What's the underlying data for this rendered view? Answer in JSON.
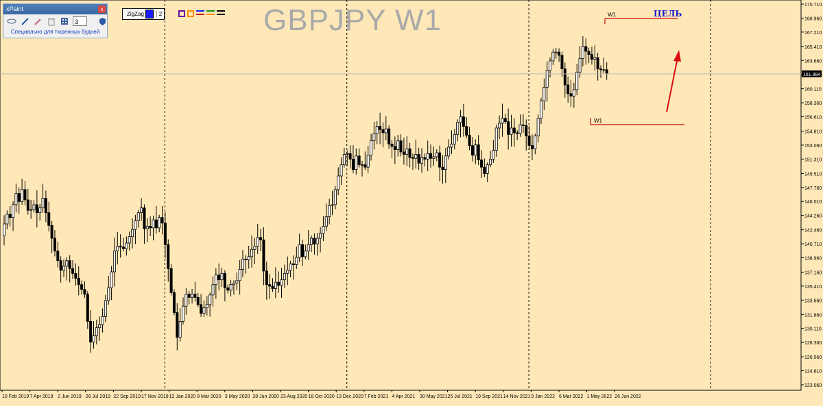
{
  "window": {
    "symbol_title": "GBPJPY W1",
    "colors": {
      "background": "#ffe8b8",
      "bull": "#ffffff",
      "bear": "#000000",
      "grid": "#000000",
      "level": "#cc1111",
      "target_text": "#1a1acc"
    }
  },
  "xpaint": {
    "title": "xPaint",
    "close_label": "x",
    "tools": [
      {
        "name": "eraser-icon"
      },
      {
        "name": "brush-icon"
      },
      {
        "name": "marker-icon"
      },
      {
        "name": "trash-icon"
      },
      {
        "name": "palette-icon"
      }
    ],
    "line_width": "3",
    "note": "Специально для тюренных будней",
    "shield_icon": "shield-icon"
  },
  "zigzag": {
    "label": "ZigZag",
    "color": "#1a1aff",
    "value": "2"
  },
  "drawing_colors": [
    {
      "kind": "square",
      "color": "#6a0aa0"
    },
    {
      "kind": "square",
      "color": "#ff8800"
    },
    {
      "kind": "lines",
      "colors": [
        "#1a1aff",
        "#cc0000"
      ]
    },
    {
      "kind": "lines",
      "colors": [
        "#1a8a1a",
        "#ff8800"
      ]
    },
    {
      "kind": "lines",
      "colors": [
        "#000000",
        "#000000"
      ]
    }
  ],
  "annotations": {
    "target_label": "ЦЕЛЬ",
    "upper_level": {
      "label": "W1",
      "price": 168.9
    },
    "lower_level": {
      "label": "W1",
      "price": 155.62
    },
    "arrow": "red arrow pointing up"
  },
  "chart_data": {
    "type": "candlestick",
    "title": "GBPJPY W1",
    "symbol": "GBPJPY",
    "timeframe": "W1",
    "ylim": [
      123.06,
      170.71
    ],
    "current_price": 161.984,
    "y_ticks": [
      "170.710",
      "168.960",
      "167.210",
      "165.410",
      "163.660",
      "161.910",
      "160.110",
      "158.360",
      "156.610",
      "154.810",
      "153.060",
      "151.310",
      "149.510",
      "147.760",
      "146.010",
      "144.260",
      "142.460",
      "140.710",
      "138.960",
      "137.160",
      "135.410",
      "133.660",
      "131.860",
      "130.110",
      "128.360",
      "126.560",
      "124.810",
      "123.060"
    ],
    "x_ticks": [
      "10 Feb 2019",
      "7 Apr 2019",
      "2 Jun 2019",
      "28 Jul 2019",
      "22 Sep 2019",
      "17 Nov 2019",
      "12 Jan 2020",
      "8 Mar 2020",
      "3 May 2020",
      "28 Jun 2020",
      "23 Aug 2020",
      "18 Oct 2020",
      "13 Dec 2020",
      "7 Feb 2021",
      "4 Apr 2021",
      "30 May 2021",
      "25 Jul 2021",
      "19 Sep 2021",
      "14 Nov 2021",
      "9 Jan 2022",
      "6 Mar 2022",
      "1 May 2022",
      "26 Jun 2022"
    ],
    "period_separators": [
      "2019/2020",
      "2020/2021",
      "2021/2022",
      "2022/2023"
    ],
    "closes": [
      143.2,
      144.4,
      144.0,
      145.6,
      147.0,
      146.0,
      147.5,
      146.2,
      144.9,
      145.0,
      145.6,
      144.6,
      145.2,
      146.4,
      144.6,
      143.0,
      141.4,
      139.8,
      138.6,
      137.4,
      137.9,
      138.6,
      137.6,
      137.0,
      136.4,
      135.6,
      135.0,
      134.4,
      131.0,
      128.4,
      129.2,
      130.2,
      130.6,
      131.6,
      133.6,
      135.2,
      137.2,
      139.8,
      140.4,
      140.3,
      140.1,
      140.8,
      141.6,
      142.5,
      143.6,
      144.6,
      145.2,
      142.6,
      142.9,
      142.7,
      143.7,
      142.7,
      144.0,
      143.3,
      140.6,
      137.6,
      134.6,
      132.1,
      129.0,
      131.0,
      132.9,
      134.4,
      134.0,
      134.4,
      134.0,
      133.1,
      132.0,
      132.7,
      133.1,
      134.3,
      135.6,
      136.8,
      136.2,
      137.0,
      135.2,
      134.9,
      135.6,
      135.8,
      136.1,
      137.5,
      138.8,
      138.7,
      139.1,
      140.0,
      140.4,
      141.5,
      141.2,
      137.3,
      135.6,
      135.4,
      135.1,
      135.9,
      135.5,
      136.2,
      137.0,
      137.4,
      138.2,
      138.1,
      139.0,
      140.6,
      139.1,
      139.8,
      140.6,
      141.4,
      140.7,
      141.4,
      142.0,
      142.9,
      144.1,
      145.5,
      145.6,
      147.5,
      149.2,
      150.6,
      151.9,
      152.0,
      151.3,
      150.0,
      151.7,
      150.6,
      150.6,
      150.3,
      151.8,
      153.6,
      154.5,
      155.4,
      155.0,
      154.6,
      155.1,
      153.2,
      152.9,
      152.5,
      153.6,
      152.2,
      151.9,
      152.6,
      151.5,
      151.4,
      151.9,
      150.8,
      151.5,
      151.3,
      152.0,
      151.4,
      151.6,
      152.1,
      150.3,
      150.0,
      151.7,
      152.8,
      153.2,
      154.4,
      155.9,
      156.6,
      155.4,
      154.3,
      153.0,
      151.8,
      153.1,
      151.2,
      150.3,
      149.5,
      150.6,
      151.3,
      152.4,
      155.2,
      155.8,
      156.4,
      156.0,
      154.4,
      155.2,
      154.6,
      154.5,
      155.6,
      155.5,
      154.2,
      153.0,
      152.6,
      154.2,
      156.4,
      158.6,
      160.3,
      162.4,
      163.6,
      164.7,
      164.7,
      164.3,
      162.6,
      160.6,
      159.5,
      159.2,
      160.0,
      162.2,
      163.9,
      165.4,
      164.8,
      164.4,
      163.8,
      164.0,
      162.6,
      162.5,
      162.5,
      161.984
    ]
  }
}
